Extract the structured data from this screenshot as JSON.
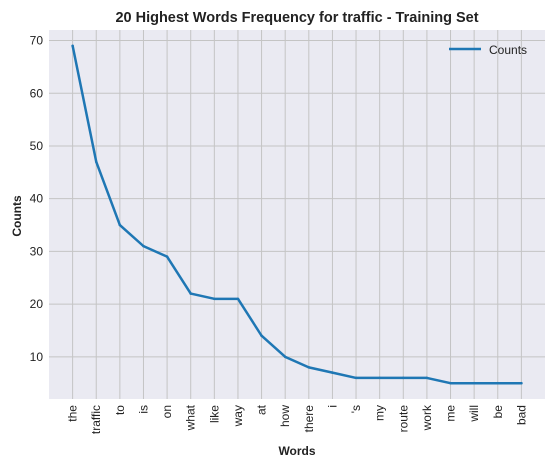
{
  "chart_data": {
    "type": "line",
    "title": "20 Highest Words Frequency for traffic - Training Set",
    "xlabel": "Words",
    "ylabel": "Counts",
    "categories": [
      "the",
      "traffic",
      "to",
      "is",
      "on",
      "what",
      "like",
      "way",
      "at",
      "how",
      "there",
      "i",
      "'s",
      "my",
      "route",
      "work",
      "me",
      "will",
      "be",
      "bad"
    ],
    "series": [
      {
        "name": "Counts",
        "color": "#1f77b4",
        "values": [
          69,
          47,
          35,
          31,
          29,
          22,
          21,
          21,
          14,
          10,
          8,
          7,
          6,
          6,
          6,
          6,
          5,
          5,
          5,
          5
        ]
      }
    ],
    "ylim": [
      2,
      72
    ],
    "yticks": [
      10,
      20,
      30,
      40,
      50,
      60,
      70
    ],
    "grid": true,
    "legend_position": "top-right",
    "plot_bg": "#eaeaf2",
    "grid_color": "#c4c4c4"
  }
}
